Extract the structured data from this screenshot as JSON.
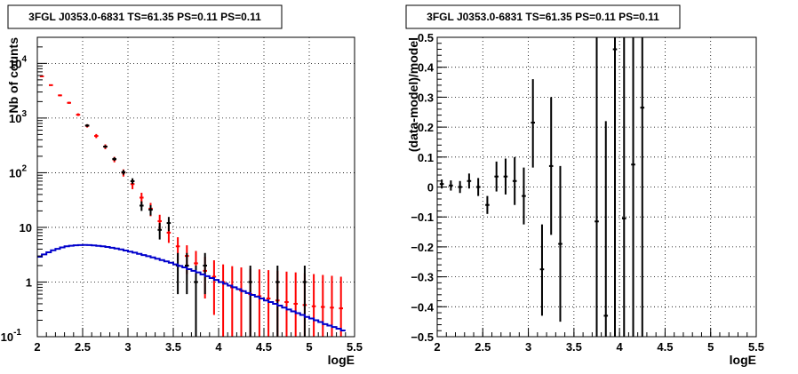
{
  "chart_data": [
    {
      "type": "histogram",
      "title": "3FGL J0353.0-6831 TS=61.35 PS=0.11 PS=0.11",
      "xlabel": "logE",
      "ylabel": "Nb of counts",
      "xlim": [
        2,
        5.5
      ],
      "ylim": [
        0.1,
        30000
      ],
      "yscale": "log",
      "grid": true,
      "x_ticks": [
        "2",
        "2.5",
        "3",
        "3.5",
        "4",
        "4.5",
        "5",
        "5.5"
      ],
      "y_ticks": [
        {
          "value": 0.1,
          "label": "10",
          "exp": "-1"
        },
        {
          "value": 1,
          "label": "1",
          "exp": ""
        },
        {
          "value": 10,
          "label": "10",
          "exp": ""
        },
        {
          "value": 100,
          "label": "10",
          "exp": "2"
        },
        {
          "value": 1000,
          "label": "10",
          "exp": "3"
        },
        {
          "value": 10000,
          "label": "10",
          "exp": "4"
        }
      ],
      "series": [
        {
          "color": "#ff0000",
          "style": "errorbars",
          "points": [
            {
              "x": 2.05,
              "y": 5800,
              "lo": 5650,
              "hi": 5950
            },
            {
              "x": 2.15,
              "y": 4000,
              "lo": 3880,
              "hi": 4130
            },
            {
              "x": 2.25,
              "y": 2600,
              "lo": 2500,
              "hi": 2700
            },
            {
              "x": 2.35,
              "y": 1900,
              "lo": 1820,
              "hi": 1990
            },
            {
              "x": 2.45,
              "y": 1150,
              "lo": 1090,
              "hi": 1220
            },
            {
              "x": 2.55,
              "y": 720,
              "lo": 670,
              "hi": 770
            },
            {
              "x": 2.65,
              "y": 470,
              "lo": 430,
              "hi": 510
            },
            {
              "x": 2.75,
              "y": 300,
              "lo": 270,
              "hi": 330
            },
            {
              "x": 2.85,
              "y": 175,
              "lo": 155,
              "hi": 195
            },
            {
              "x": 2.95,
              "y": 100,
              "lo": 85,
              "hi": 115
            },
            {
              "x": 3.05,
              "y": 62,
              "lo": 50,
              "hi": 74
            },
            {
              "x": 3.15,
              "y": 35,
              "lo": 27,
              "hi": 43
            },
            {
              "x": 3.25,
              "y": 22,
              "lo": 16,
              "hi": 28
            },
            {
              "x": 3.35,
              "y": 13,
              "lo": 9,
              "hi": 17
            },
            {
              "x": 3.45,
              "y": 8,
              "lo": 5.2,
              "hi": 10.8
            },
            {
              "x": 3.55,
              "y": 4.5,
              "lo": 2.5,
              "hi": 6.6
            },
            {
              "x": 3.65,
              "y": 3.0,
              "lo": 1.4,
              "hi": 4.7
            },
            {
              "x": 3.75,
              "y": 2.2,
              "lo": 0.85,
              "hi": 3.7
            },
            {
              "x": 3.85,
              "y": 1.6,
              "lo": 0.5,
              "hi": 2.9
            },
            {
              "x": 3.95,
              "y": 1.25,
              "lo": 0.25,
              "hi": 2.5
            },
            {
              "x": 4.05,
              "y": 1.0,
              "lo": 0.1,
              "hi": 2.1
            },
            {
              "x": 4.15,
              "y": 0.8,
              "lo": 0.1,
              "hi": 1.95
            },
            {
              "x": 4.25,
              "y": 0.7,
              "lo": 0.1,
              "hi": 1.85
            },
            {
              "x": 4.35,
              "y": 0.6,
              "lo": 0.1,
              "hi": 1.75
            },
            {
              "x": 4.45,
              "y": 0.55,
              "lo": 0.1,
              "hi": 1.7
            },
            {
              "x": 4.55,
              "y": 0.5,
              "lo": 0.1,
              "hi": 1.65
            },
            {
              "x": 4.65,
              "y": 0.46,
              "lo": 0.1,
              "hi": 1.6
            },
            {
              "x": 4.75,
              "y": 0.43,
              "lo": 0.1,
              "hi": 1.55
            },
            {
              "x": 4.85,
              "y": 0.4,
              "lo": 0.1,
              "hi": 1.5
            },
            {
              "x": 4.95,
              "y": 0.38,
              "lo": 0.1,
              "hi": 1.45
            },
            {
              "x": 5.05,
              "y": 0.36,
              "lo": 0.1,
              "hi": 1.4
            },
            {
              "x": 5.15,
              "y": 0.35,
              "lo": 0.1,
              "hi": 1.35
            },
            {
              "x": 5.25,
              "y": 0.34,
              "lo": 0.1,
              "hi": 1.3
            },
            {
              "x": 5.35,
              "y": 0.33,
              "lo": 0.1,
              "hi": 1.25
            }
          ]
        },
        {
          "color": "#000000",
          "style": "errorbars",
          "points": [
            {
              "x": 2.55,
              "y": 730,
              "lo": 690,
              "hi": 770
            },
            {
              "x": 2.75,
              "y": 300,
              "lo": 283,
              "hi": 318
            },
            {
              "x": 2.85,
              "y": 178,
              "lo": 165,
              "hi": 191
            },
            {
              "x": 2.95,
              "y": 102,
              "lo": 92,
              "hi": 112
            },
            {
              "x": 3.05,
              "y": 70,
              "lo": 62,
              "hi": 79
            },
            {
              "x": 3.15,
              "y": 25,
              "lo": 20,
              "hi": 30
            },
            {
              "x": 3.25,
              "y": 21,
              "lo": 16.5,
              "hi": 25.5
            },
            {
              "x": 3.35,
              "y": 9,
              "lo": 6,
              "hi": 12
            },
            {
              "x": 3.45,
              "y": 12,
              "lo": 8.5,
              "hi": 15.5
            },
            {
              "x": 3.55,
              "y": 2,
              "lo": 0.6,
              "hi": 3.4
            },
            {
              "x": 3.65,
              "y": 2,
              "lo": 0.6,
              "hi": 3.4
            },
            {
              "x": 3.75,
              "y": 1,
              "lo": 0.1,
              "hi": 2.0
            },
            {
              "x": 3.85,
              "y": 2,
              "lo": 0.6,
              "hi": 3.4
            },
            {
              "x": 4.35,
              "y": 1,
              "lo": 0.1,
              "hi": 2.0
            },
            {
              "x": 4.65,
              "y": 1,
              "lo": 0.1,
              "hi": 2.0
            },
            {
              "x": 4.95,
              "y": 1,
              "lo": 0.1,
              "hi": 2.0
            }
          ]
        },
        {
          "color": "#0000cc",
          "style": "step",
          "edges": [
            2.0,
            2.05,
            2.1,
            2.15,
            2.2,
            2.25,
            2.3,
            2.35,
            2.4,
            2.45,
            2.5,
            2.55,
            2.6,
            2.65,
            2.7,
            2.75,
            2.8,
            2.85,
            2.9,
            2.95,
            3.0,
            3.05,
            3.1,
            3.15,
            3.2,
            3.25,
            3.3,
            3.35,
            3.4,
            3.45,
            3.5,
            3.55,
            3.6,
            3.65,
            3.7,
            3.75,
            3.8,
            3.85,
            3.9,
            3.95,
            4.0,
            4.05,
            4.1,
            4.15,
            4.2,
            4.25,
            4.3,
            4.35,
            4.4,
            4.45,
            4.5,
            4.55,
            4.6,
            4.65,
            4.7,
            4.75,
            4.8,
            4.85,
            4.9,
            4.95,
            5.0,
            5.05,
            5.1,
            5.15,
            5.2,
            5.25,
            5.3,
            5.35,
            5.4
          ],
          "values": [
            2.9,
            3.2,
            3.5,
            3.8,
            4.05,
            4.3,
            4.5,
            4.62,
            4.7,
            4.75,
            4.76,
            4.74,
            4.68,
            4.6,
            4.5,
            4.38,
            4.24,
            4.1,
            3.95,
            3.78,
            3.6,
            3.45,
            3.28,
            3.12,
            2.97,
            2.82,
            2.67,
            2.52,
            2.38,
            2.25,
            2.1,
            1.97,
            1.85,
            1.72,
            1.6,
            1.5,
            1.38,
            1.28,
            1.18,
            1.09,
            1.0,
            0.93,
            0.86,
            0.8,
            0.74,
            0.68,
            0.63,
            0.58,
            0.54,
            0.5,
            0.46,
            0.43,
            0.4,
            0.37,
            0.34,
            0.315,
            0.29,
            0.27,
            0.25,
            0.23,
            0.215,
            0.2,
            0.185,
            0.17,
            0.16,
            0.15,
            0.14,
            0.13
          ]
        }
      ]
    },
    {
      "type": "scatter",
      "title": "3FGL J0353.0-6831 TS=61.35 PS=0.11 PS=0.11",
      "xlabel": "logE",
      "ylabel": "(data-model)/model",
      "xlim": [
        2,
        5.5
      ],
      "ylim": [
        -0.5,
        0.5
      ],
      "grid": true,
      "x_ticks": [
        "2",
        "2.5",
        "3",
        "3.5",
        "4",
        "4.5",
        "5",
        "5.5"
      ],
      "y_ticks": [
        "−0.5",
        "−0.4",
        "−0.3",
        "−0.2",
        "−0.1",
        "0",
        "0.1",
        "0.2",
        "0.3",
        "0.4",
        "0.5"
      ],
      "series": [
        {
          "color": "#000000",
          "style": "errorbars",
          "points": [
            {
              "x": 2.05,
              "y": 0.01,
              "lo": -0.005,
              "hi": 0.025
            },
            {
              "x": 2.15,
              "y": 0.005,
              "lo": -0.012,
              "hi": 0.022
            },
            {
              "x": 2.25,
              "y": 0.0,
              "lo": -0.02,
              "hi": 0.02
            },
            {
              "x": 2.35,
              "y": 0.02,
              "lo": -0.005,
              "hi": 0.045
            },
            {
              "x": 2.45,
              "y": 0.0,
              "lo": -0.03,
              "hi": 0.03
            },
            {
              "x": 2.55,
              "y": -0.06,
              "lo": -0.09,
              "hi": -0.03
            },
            {
              "x": 2.65,
              "y": 0.035,
              "lo": -0.015,
              "hi": 0.085
            },
            {
              "x": 2.75,
              "y": 0.035,
              "lo": -0.025,
              "hi": 0.095
            },
            {
              "x": 2.85,
              "y": 0.02,
              "lo": -0.06,
              "hi": 0.1
            },
            {
              "x": 2.95,
              "y": -0.03,
              "lo": -0.125,
              "hi": 0.065
            },
            {
              "x": 3.05,
              "y": 0.215,
              "lo": 0.065,
              "hi": 0.36
            },
            {
              "x": 3.15,
              "y": -0.275,
              "lo": -0.43,
              "hi": -0.125
            },
            {
              "x": 3.25,
              "y": 0.07,
              "lo": -0.16,
              "hi": 0.3
            },
            {
              "x": 3.35,
              "y": -0.19,
              "lo": -0.45,
              "hi": 0.07
            },
            {
              "x": 3.75,
              "y": -0.115,
              "lo": -0.5,
              "hi": 0.5
            },
            {
              "x": 3.85,
              "y": -0.43,
              "lo": -0.5,
              "hi": 0.22
            },
            {
              "x": 3.95,
              "y": 0.46,
              "lo": -0.5,
              "hi": 0.5
            },
            {
              "x": 4.05,
              "y": -0.105,
              "lo": -0.5,
              "hi": 0.5
            },
            {
              "x": 4.15,
              "y": 0.075,
              "lo": -0.5,
              "hi": 0.5
            },
            {
              "x": 4.25,
              "y": 0.265,
              "lo": -0.5,
              "hi": 0.5
            }
          ]
        }
      ]
    }
  ]
}
